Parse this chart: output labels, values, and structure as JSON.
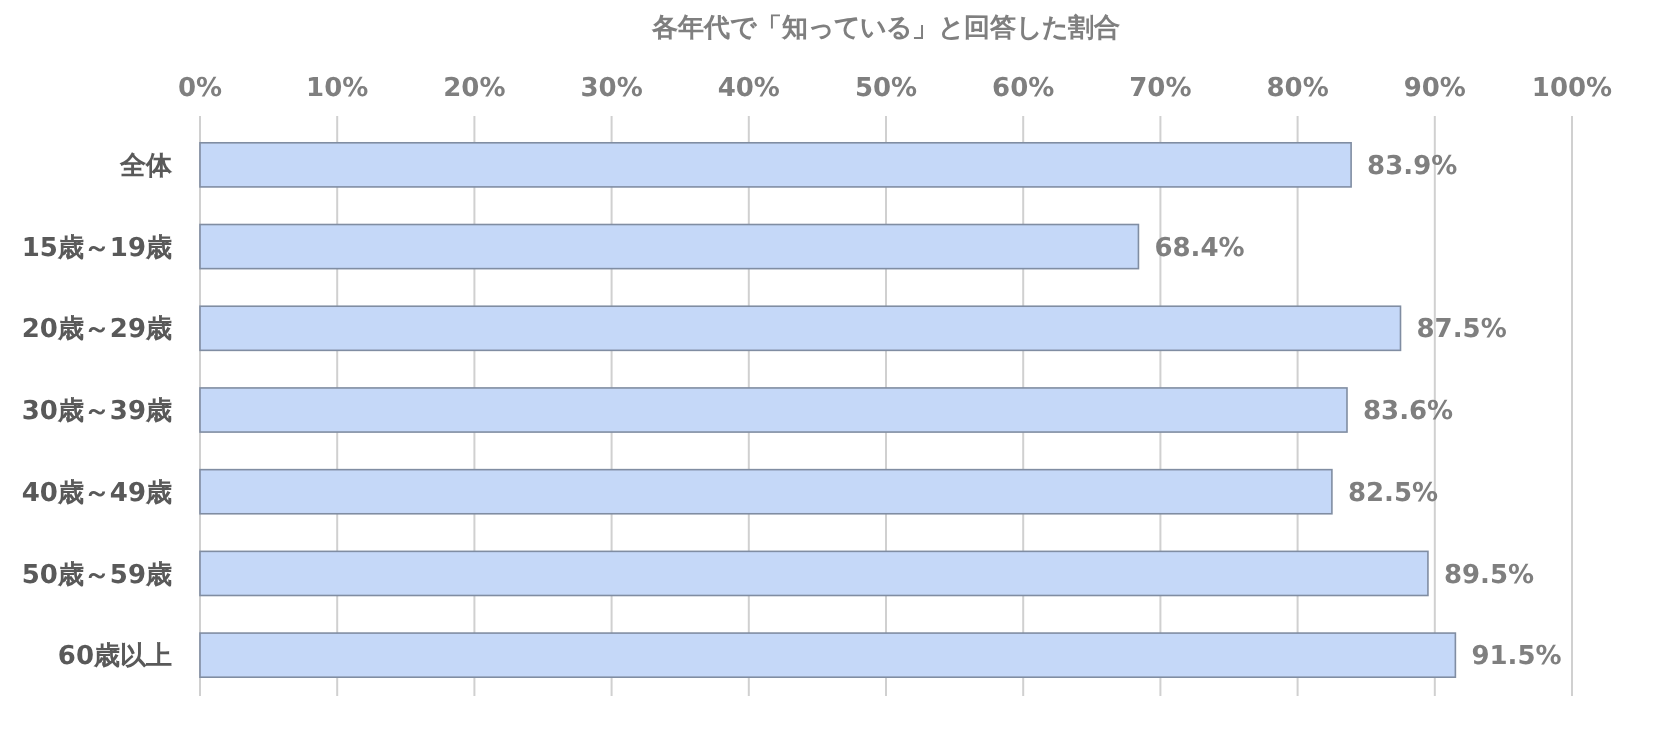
{
  "chart_data": {
    "type": "bar",
    "orientation": "horizontal",
    "title": "各年代で「知っている」と回答した割合",
    "categories": [
      "全体",
      "15歳～19歳",
      "20歳～29歳",
      "30歳～39歳",
      "40歳～49歳",
      "50歳～59歳",
      "60歳以上"
    ],
    "values": [
      83.9,
      68.4,
      87.5,
      83.6,
      82.5,
      89.5,
      91.5
    ],
    "value_labels": [
      "83.9%",
      "68.4%",
      "87.5%",
      "83.6%",
      "82.5%",
      "89.5%",
      "91.5%"
    ],
    "color": "#c5d8f8",
    "xlim": [
      0,
      100
    ],
    "xticks": [
      {
        "value": 0,
        "label": "0%"
      },
      {
        "value": 10,
        "label": "10%"
      },
      {
        "value": 20,
        "label": "20%"
      },
      {
        "value": 30,
        "label": "30%"
      },
      {
        "value": 40,
        "label": "40%"
      },
      {
        "value": 50,
        "label": "50%"
      },
      {
        "value": 60,
        "label": "60%"
      },
      {
        "value": 70,
        "label": "70%"
      },
      {
        "value": 80,
        "label": "80%"
      },
      {
        "value": 90,
        "label": "90%"
      },
      {
        "value": 100,
        "label": "100%"
      }
    ],
    "grid": "x"
  }
}
